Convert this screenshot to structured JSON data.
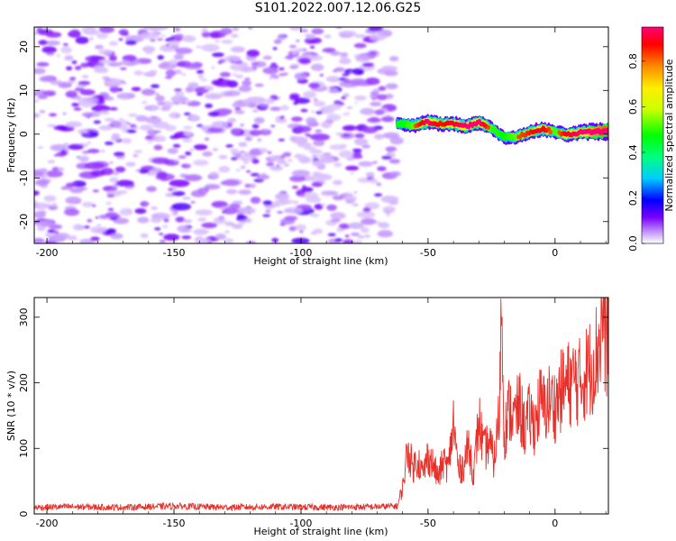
{
  "page_title": "S101.2022.007.12.06.G25",
  "chart_data": [
    {
      "type": "heatmap",
      "xlabel": "Height of straight line (km)",
      "ylabel": "Frequency (Hz)",
      "xlim": [
        -205,
        21
      ],
      "ylim": [
        -25,
        24.5
      ],
      "xticks": [
        -200,
        -150,
        -100,
        -50,
        0
      ],
      "yticks": [
        -20,
        -10,
        0,
        10,
        20
      ],
      "colorbar": {
        "label": "Normalized spectral amplitude",
        "range": [
          0,
          0.95
        ],
        "ticks": [
          0.0,
          0.2,
          0.4,
          0.6,
          0.8
        ]
      },
      "noise_region_x": [
        -205,
        -62
      ],
      "signal_ridge": {
        "x": [
          -62,
          -55,
          -50,
          -45,
          -40,
          -35,
          -30,
          -25,
          -20,
          -15,
          -10,
          -5,
          0,
          5,
          10,
          15,
          21
        ],
        "frequency": [
          2.5,
          2.0,
          2.8,
          2.3,
          2.4,
          1.8,
          2.7,
          1.4,
          -0.8,
          -0.6,
          0.4,
          1.2,
          0.5,
          -0.1,
          0.4,
          0.6,
          0.6
        ],
        "amplitude": [
          0.25,
          0.4,
          0.55,
          0.45,
          0.5,
          0.55,
          0.6,
          0.35,
          0.3,
          0.4,
          0.45,
          0.5,
          0.35,
          0.5,
          0.55,
          0.8,
          0.9
        ]
      }
    },
    {
      "type": "line",
      "xlabel": "Height of straight line (km)",
      "ylabel": "SNR (10 * v/v)",
      "xlim": [
        -205,
        21
      ],
      "ylim": [
        0,
        330
      ],
      "xticks": [
        -200,
        -150,
        -100,
        -50,
        0
      ],
      "yticks": [
        0,
        100,
        200,
        300
      ],
      "color": "#e8302a",
      "series": [
        {
          "x": [
            -205,
            -190,
            -170,
            -150,
            -130,
            -110,
            -90,
            -70,
            -62,
            -60,
            -58,
            -56,
            -54,
            -52,
            -50,
            -48,
            -46,
            -44,
            -42,
            -40,
            -38,
            -36,
            -34,
            -32,
            -30,
            -28,
            -26,
            -24,
            -22,
            -21,
            -20,
            -18,
            -16,
            -14,
            -12,
            -10,
            -8,
            -6,
            -4,
            -2,
            0,
            2,
            4,
            6,
            8,
            10,
            12,
            14,
            16,
            18,
            19,
            20,
            21
          ],
          "values": [
            10,
            11,
            10,
            12,
            10,
            11,
            10,
            11,
            12,
            40,
            100,
            70,
            85,
            60,
            90,
            75,
            55,
            80,
            70,
            140,
            65,
            75,
            105,
            60,
            145,
            95,
            110,
            80,
            150,
            330,
            120,
            160,
            145,
            165,
            130,
            150,
            135,
            170,
            160,
            175,
            165,
            185,
            195,
            200,
            205,
            200,
            215,
            225,
            240,
            275,
            310,
            255,
            300
          ]
        }
      ]
    }
  ]
}
